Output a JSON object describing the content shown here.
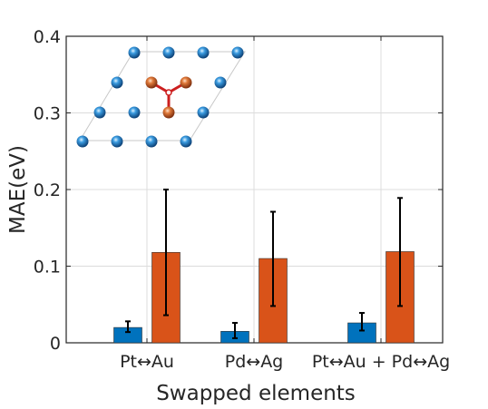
{
  "chart_data": {
    "type": "bar",
    "xlabel": "Swapped elements",
    "ylabel": "MAE(eV)",
    "ylim": [
      0,
      0.4
    ],
    "yticks": [
      0,
      0.1,
      0.2,
      0.3,
      0.4
    ],
    "ytick_labels": [
      "0",
      "0.1",
      "0.2",
      "0.3",
      "0.4"
    ],
    "categories": [
      "Pt↔Au",
      "Pd↔Ag",
      "Pt↔Au + Pd↔Ag"
    ],
    "grid": true,
    "series": [
      {
        "color": "#0072BD",
        "values": [
          0.02,
          0.015,
          0.026
        ],
        "err_low": [
          0.014,
          0.006,
          0.016
        ],
        "err_high": [
          0.028,
          0.026,
          0.039
        ]
      },
      {
        "color": "#D95319",
        "values": [
          0.118,
          0.11,
          0.119
        ],
        "err_low": [
          0.036,
          0.048,
          0.048
        ],
        "err_high": [
          0.2,
          0.171,
          0.189
        ]
      }
    ],
    "inset": {
      "blue_atom_color": "#1f7fd0",
      "orange_atom_color": "#d9652a",
      "bond_color": "#cc1f1f"
    }
  }
}
